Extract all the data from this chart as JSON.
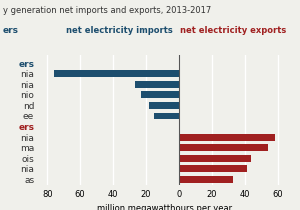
{
  "title": "y generation net imports and exports, 2013-2017",
  "xlabel": "million megawatthours per year",
  "import_label": "net electricity imports",
  "export_label": "net electricity exports",
  "import_color": "#1d4e6e",
  "export_color": "#a02020",
  "importers_header": "ers",
  "exporters_header": "ers",
  "importers": [
    {
      "label": "nia",
      "value": -76
    },
    {
      "label": "nia",
      "value": -27
    },
    {
      "label": "nio",
      "value": -23
    },
    {
      "label": "nd",
      "value": -18
    },
    {
      "label": "ee",
      "value": -15
    }
  ],
  "exporters": [
    {
      "label": "nia",
      "value": 58
    },
    {
      "label": "ma",
      "value": 54
    },
    {
      "label": "ois",
      "value": 44
    },
    {
      "label": "nia",
      "value": 41
    },
    {
      "label": "as",
      "value": 33
    }
  ],
  "xlim": [
    -85,
    68
  ],
  "xticks": [
    -80,
    -60,
    -40,
    -20,
    0,
    20,
    40,
    60
  ],
  "xticklabels": [
    "80",
    "60",
    "40",
    "20",
    "0",
    "20",
    "40",
    "60"
  ],
  "background_color": "#f0f0eb",
  "grid_color": "#ffffff"
}
